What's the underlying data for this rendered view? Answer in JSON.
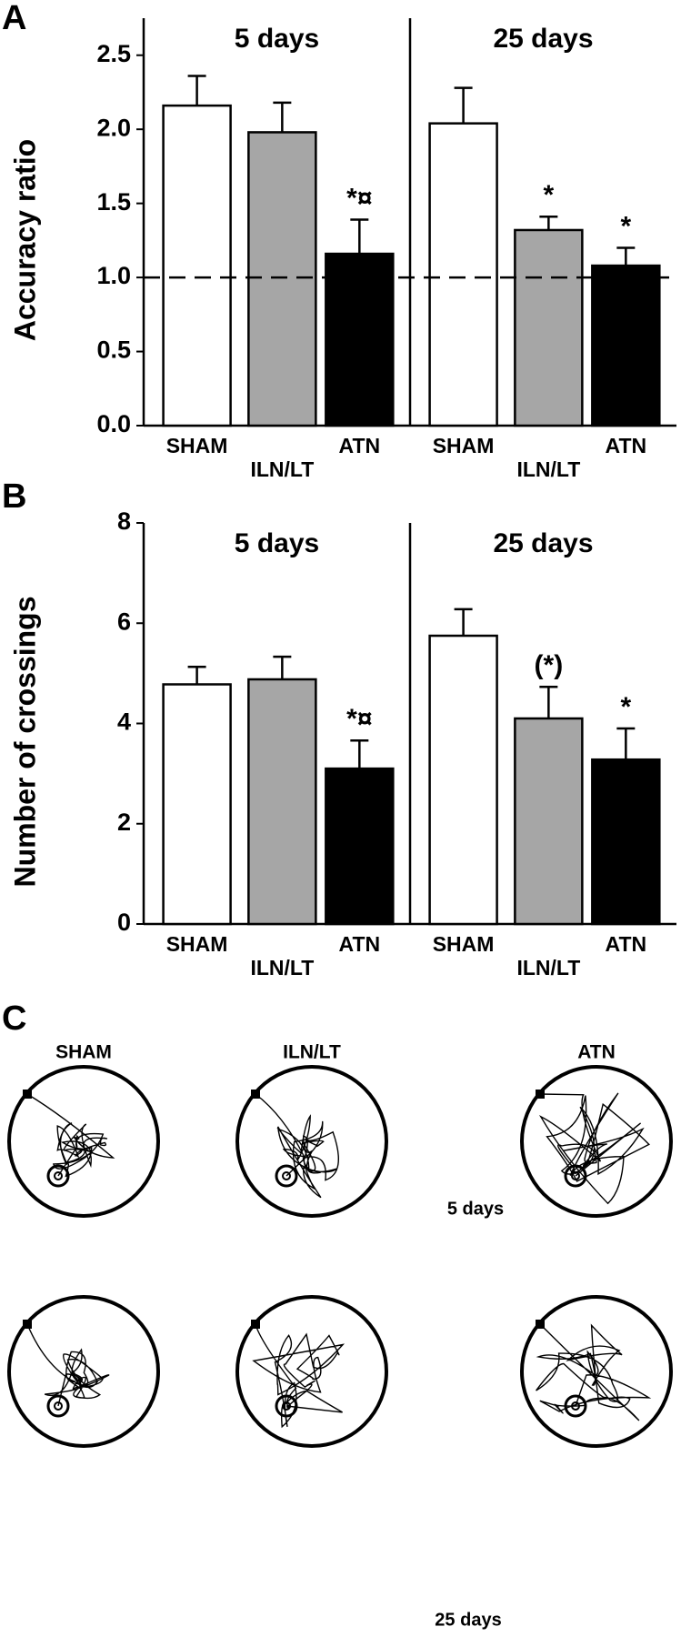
{
  "panel_labels": [
    "A",
    "B",
    "C"
  ],
  "chart_data": [
    {
      "type": "bar",
      "ylabel": "Accuracy ratio",
      "categories": [
        "SHAM",
        "ILN/LT",
        "ATN"
      ],
      "colors": [
        "#ffffff",
        "#a6a6a6",
        "#000000"
      ],
      "groups": [
        {
          "name": "5 days",
          "values": [
            2.16,
            1.98,
            1.16
          ],
          "errors": [
            0.2,
            0.2,
            0.23
          ]
        },
        {
          "name": "25 days",
          "values": [
            2.04,
            1.32,
            1.08
          ],
          "errors": [
            0.24,
            0.09,
            0.12
          ]
        }
      ],
      "annotations": [
        {
          "group": 0,
          "index": 2,
          "text": "*¤"
        },
        {
          "group": 1,
          "index": 1,
          "text": "*"
        },
        {
          "group": 1,
          "index": 2,
          "text": "*"
        }
      ],
      "ref_line": 1,
      "ylim": [
        0,
        2.75
      ],
      "yticks": [
        {
          "value": 0,
          "label": "0.0"
        },
        0.5,
        {
          "value": 1,
          "label": "1.0"
        },
        1.5,
        {
          "value": 2,
          "label": "2.0"
        },
        2.5
      ]
    },
    {
      "type": "bar",
      "ylabel": "Number of crossings",
      "categories": [
        "SHAM",
        "ILN/LT",
        "ATN"
      ],
      "colors": [
        "#ffffff",
        "#a6a6a6",
        "#000000"
      ],
      "groups": [
        {
          "name": "5 days",
          "values": [
            4.78,
            4.88,
            3.1
          ],
          "errors": [
            0.35,
            0.45,
            0.56
          ]
        },
        {
          "name": "25 days",
          "values": [
            5.75,
            4.1,
            3.28
          ],
          "errors": [
            0.53,
            0.63,
            0.62
          ]
        }
      ],
      "annotations": [
        {
          "group": 0,
          "index": 2,
          "text": "*¤"
        },
        {
          "group": 1,
          "index": 1,
          "text": "(*)"
        },
        {
          "group": 1,
          "index": 2,
          "text": "*"
        }
      ],
      "ylim": [
        0,
        8
      ],
      "yticks": [
        0,
        2,
        4,
        6,
        8
      ]
    }
  ],
  "track_panel": {
    "columns": [
      "SHAM",
      "ILN/LT",
      "ATN"
    ],
    "rows": [
      "5 days",
      "25 days"
    ]
  }
}
